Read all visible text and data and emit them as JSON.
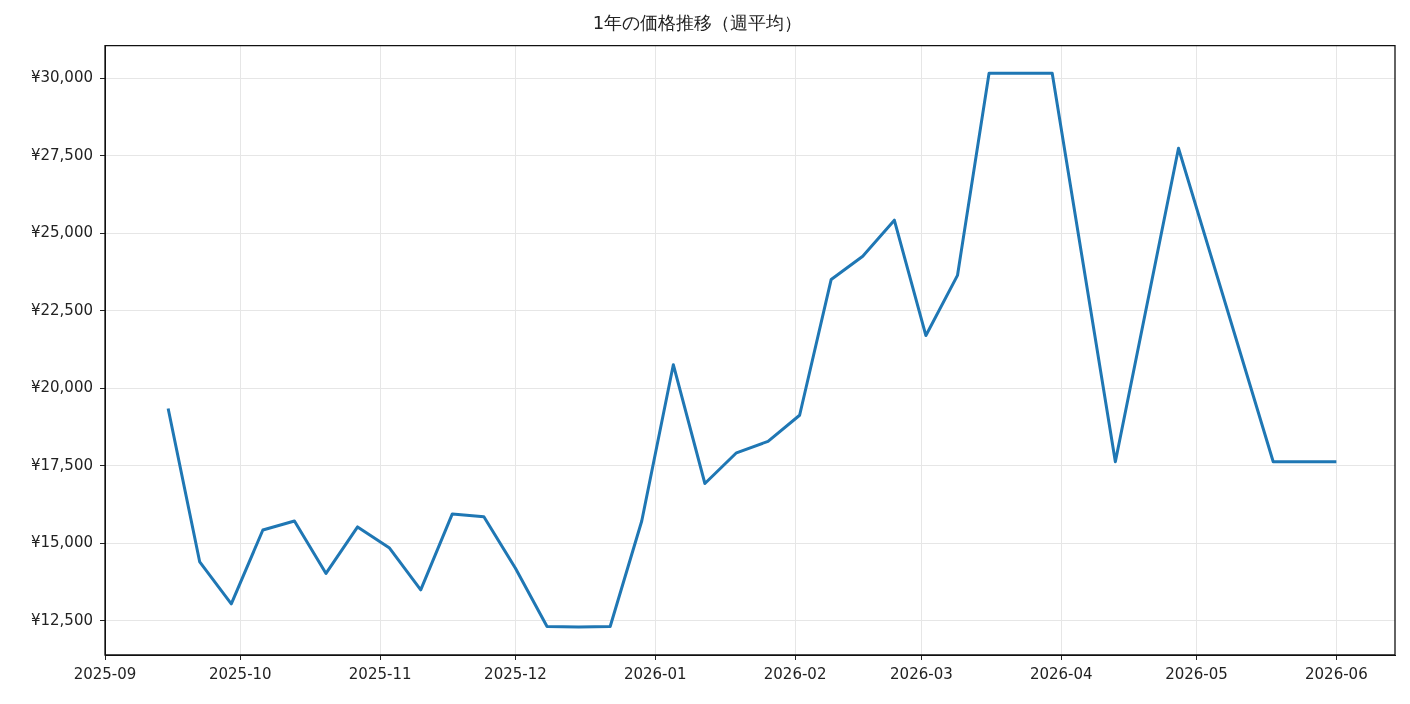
{
  "chart_data": {
    "type": "line",
    "title": "1年の価格推移（週平均）",
    "x": [
      "2025-09-15",
      "2025-09-22",
      "2025-09-29",
      "2025-10-06",
      "2025-10-13",
      "2025-10-20",
      "2025-10-27",
      "2025-11-03",
      "2025-11-10",
      "2025-11-17",
      "2025-11-24",
      "2025-12-01",
      "2025-12-08",
      "2025-12-15",
      "2025-12-22",
      "2025-12-29",
      "2026-01-05",
      "2026-01-12",
      "2026-01-19",
      "2026-01-26",
      "2026-02-02",
      "2026-02-09",
      "2026-02-16",
      "2026-02-23",
      "2026-03-02",
      "2026-03-09",
      "2026-03-16",
      "2026-03-23",
      "2026-03-30",
      "2026-04-13",
      "2026-04-27",
      "2026-05-18",
      "2026-05-25",
      "2026-06-01"
    ],
    "series": [
      {
        "color": "#1f77b4",
        "values": [
          19350,
          14400,
          13050,
          15430,
          15720,
          14030,
          15530,
          14860,
          13500,
          15950,
          15860,
          14200,
          12320,
          12300,
          12320,
          15720,
          20760,
          16930,
          17920,
          18290,
          19130,
          23510,
          24260,
          25420,
          21700,
          23640,
          30160,
          30160,
          30160,
          17630,
          27740,
          17630,
          17630,
          17630
        ]
      }
    ],
    "xlim": [
      "2025-09-01",
      "2026-06-14"
    ],
    "xticks": [
      "2025-09",
      "2025-10",
      "2025-11",
      "2025-12",
      "2026-01",
      "2026-02",
      "2026-03",
      "2026-04",
      "2026-05",
      "2026-06"
    ],
    "ylim": [
      11400,
      31050
    ],
    "yticks": [
      {
        "value": 12500,
        "label": "¥12,500"
      },
      {
        "value": 15000,
        "label": "¥15,000"
      },
      {
        "value": 17500,
        "label": "¥17,500"
      },
      {
        "value": 20000,
        "label": "¥20,000"
      },
      {
        "value": 22500,
        "label": "¥22,500"
      },
      {
        "value": 25000,
        "label": "¥25,000"
      },
      {
        "value": 27500,
        "label": "¥27,500"
      },
      {
        "value": 30000,
        "label": "¥30,000"
      }
    ],
    "grid": true,
    "legend": false,
    "marker": "none"
  }
}
